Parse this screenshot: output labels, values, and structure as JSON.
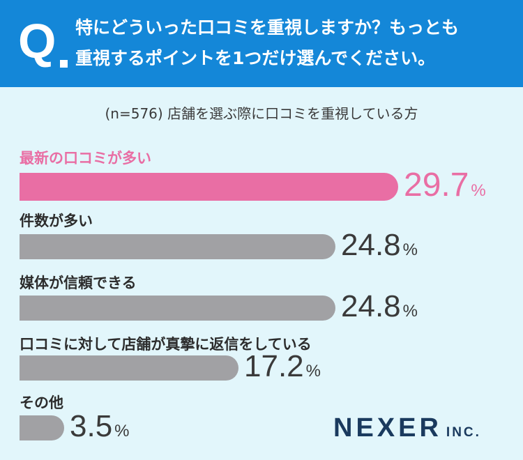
{
  "question": {
    "mark": "Q",
    "line1": "特にどういった口コミを重視しますか？もっとも",
    "line2": "重視するポイントを1つだけ選んでください。"
  },
  "subtitle": "(n=576) 店舗を選ぶ際に口コミを重視している方",
  "chart_data": {
    "type": "bar",
    "orientation": "horizontal",
    "title": "特にどういった口コミを重視しますか？もっとも重視するポイントを1つだけ選んでください。",
    "subtitle": "(n=576) 店舗を選ぶ際に口コミを重視している方",
    "unit": "%",
    "categories": [
      "最新の口コミが多い",
      "件数が多い",
      "媒体が信頼できる",
      "口コミに対して店舗が真摯に返信をしている",
      "その他"
    ],
    "values": [
      29.7,
      24.8,
      24.8,
      17.2,
      3.5
    ],
    "value_labels": [
      "29.7",
      "24.8",
      "24.8",
      "17.2",
      "3.5"
    ],
    "highlight_index": 0,
    "colors": {
      "highlight": "#e96ea4",
      "default": "#a1a1a4"
    },
    "xlim": [
      0,
      30
    ]
  },
  "logo": {
    "main": "NEXER",
    "suffix": "INC."
  },
  "colors": {
    "header_bg": "#1487d8",
    "page_bg": "#e2f6fb",
    "logo": "#1a3a5e"
  }
}
